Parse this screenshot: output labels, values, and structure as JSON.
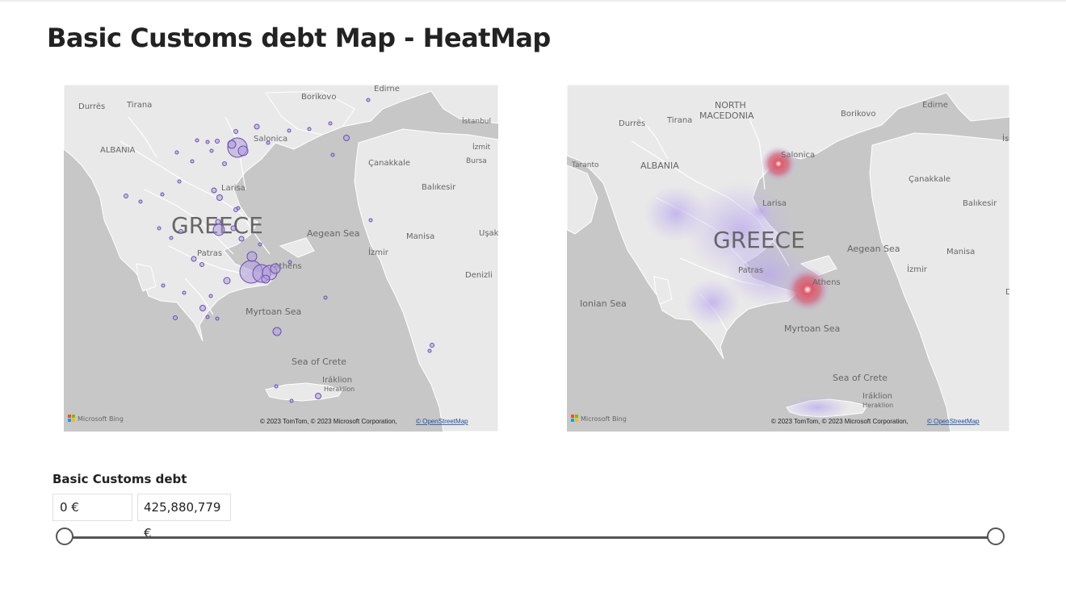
{
  "report": {
    "title": "Basic Customs debt Map - HeatMap"
  },
  "map_left": {
    "country_label": "GREECE",
    "places": {
      "durres": "Durrës",
      "tirana": "Tirana",
      "albania": "ALBANIA",
      "borikovo": "Borikovo",
      "edirne": "Edirne",
      "istanbul": "İstanbul",
      "izmit": "İzmit",
      "bursa": "Bursa",
      "salonica": "Salonica",
      "canakkale": "Çanakkale",
      "balikesir": "Balıkesir",
      "larisa": "Larisa",
      "aegean_sea": "Aegean Sea",
      "manisa": "Manisa",
      "usak": "Uşak",
      "izmir": "İzmir",
      "patras": "Patras",
      "athens": "Athens",
      "denizli": "Denizli",
      "myrtoan_sea": "Myrtoan Sea",
      "sea_of_crete": "Sea of Crete",
      "iraklion": "Iráklion",
      "heraklion": "Heraklion"
    },
    "branding": "Microsoft Bing",
    "attribution": "© 2023 TomTom, © 2023 Microsoft Corporation,",
    "attribution_link": "© OpenStreetMap"
  },
  "map_right": {
    "country_label": "GREECE",
    "places": {
      "north_macedonia_1": "NORTH",
      "north_macedonia_2": "MACEDONIA",
      "durres": "Durrës",
      "tirana": "Tirana",
      "borikovo": "Borikovo",
      "edirne": "Edirne",
      "taranto": "Taranto",
      "albania": "ALBANIA",
      "salonica": "Salonica",
      "canakkale": "Çanakkale",
      "balikesir": "Balıkesir",
      "larisa": "Larisa",
      "aegean_sea": "Aegean Sea",
      "manisa": "Manisa",
      "patras": "Patras",
      "izmir": "İzmir",
      "athens": "Athens",
      "ionian_sea": "Ionian Sea",
      "myrtoan_sea": "Myrtoan Sea",
      "sea_of_crete": "Sea of Crete",
      "iraklion": "Iráklion",
      "heraklion": "Heraklion",
      "is": "İs",
      "d": "D"
    },
    "branding": "Microsoft Bing",
    "attribution": "© 2023 TomTom, © 2023 Microsoft Corporation,",
    "attribution_link": "© OpenStreetMap"
  },
  "slicer": {
    "title": "Basic Customs debt",
    "min_value": "0 €",
    "max_value": "425,880,779 €"
  },
  "colors": {
    "bubble_fill": "#b39ddb",
    "bubble_stroke": "#6a4fb3",
    "heat_hot": "#e05a6a",
    "heat_cool": "#c5b8f0",
    "land": "#e9e9e9",
    "sea": "#c7c7c7"
  }
}
